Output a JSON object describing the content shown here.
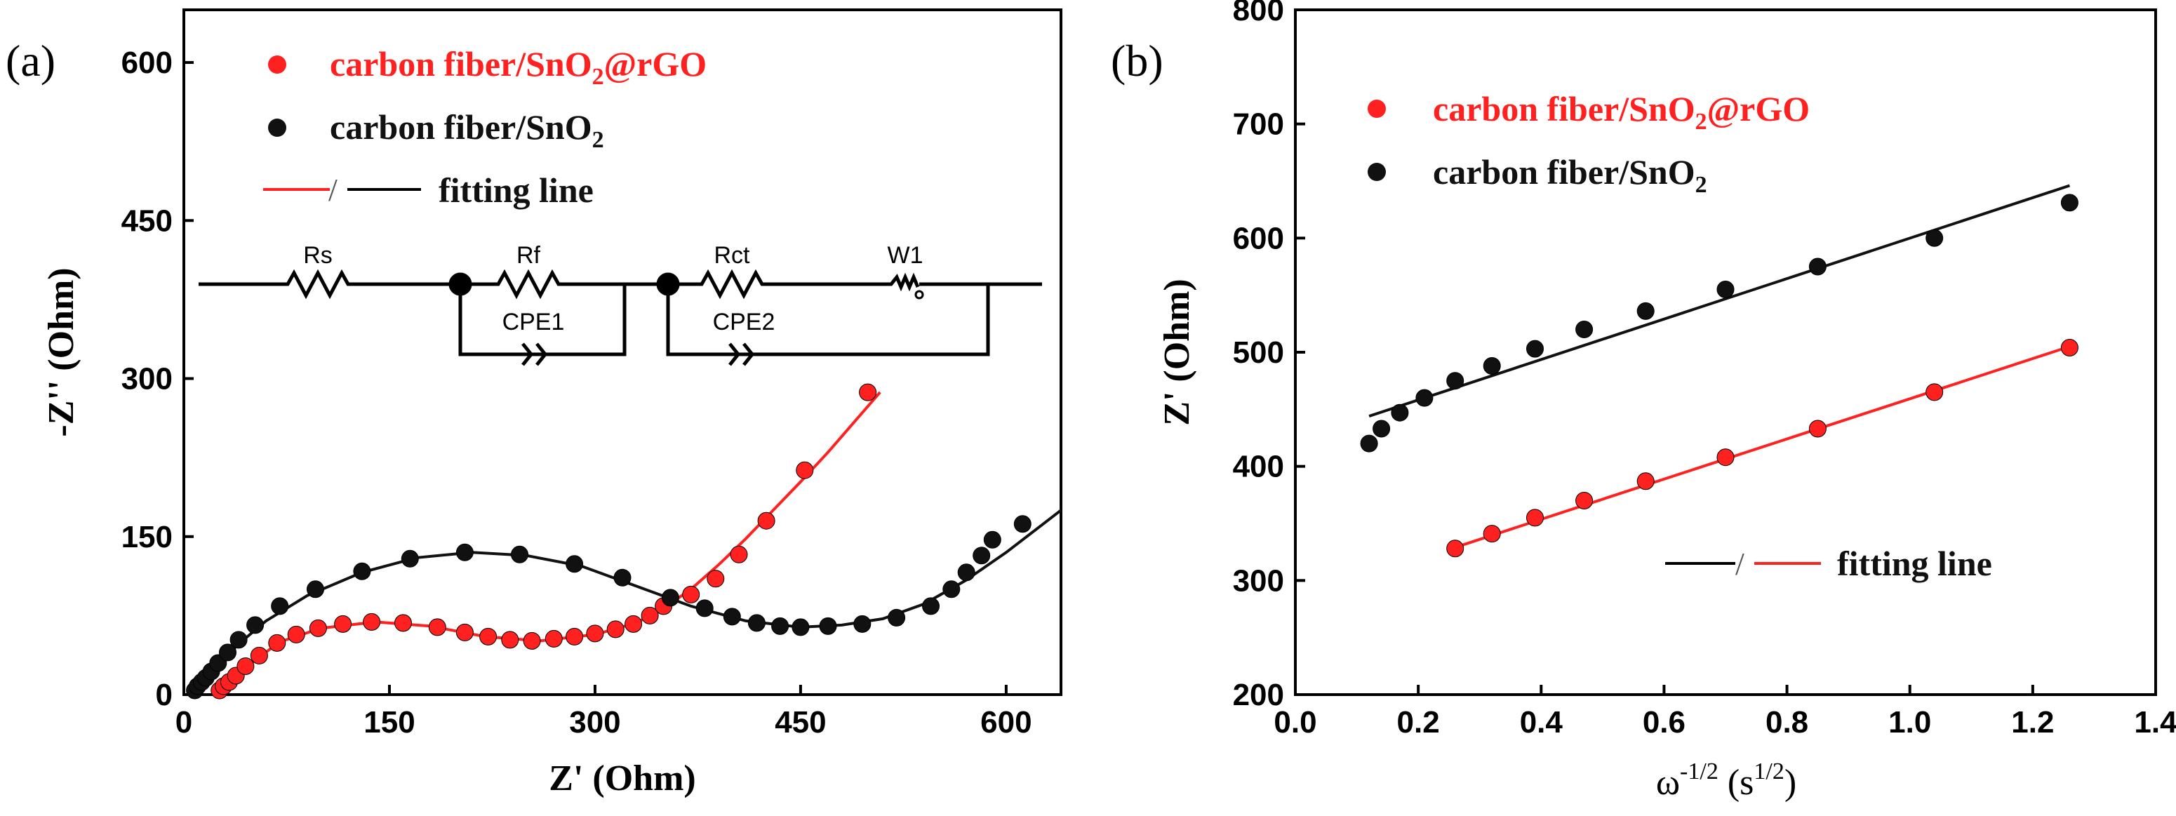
{
  "figure": {
    "colors": {
      "red": "#ff2020",
      "black": "#111111",
      "axis": "#000000"
    }
  },
  "chart_data": [
    {
      "panel_label": "(a)",
      "type": "scatter",
      "title": "",
      "xlabel": "Z' (Ohm)",
      "ylabel": "-Z'' (Ohm)",
      "xlim": [
        0,
        640
      ],
      "ylim": [
        0,
        650
      ],
      "xticks": [
        0,
        150,
        300,
        450,
        600
      ],
      "yticks": [
        0,
        150,
        300,
        450,
        600
      ],
      "legend": {
        "series1": {
          "pre": "carbon fiber/SnO",
          "sub": "2",
          "post": "@rGO"
        },
        "series2": {
          "pre": "carbon fiber/SnO",
          "sub": "2",
          "post": ""
        },
        "fit": {
          "sep": "/",
          "label": "fitting line"
        }
      },
      "circuit": {
        "labels": [
          "Rs",
          "Rf",
          "Rct",
          "W1",
          "CPE1",
          "CPE2"
        ]
      },
      "series": [
        {
          "name": "carbon fiber/SnO2@rGO",
          "color": "#ff2020",
          "points": [
            [
              26,
              4
            ],
            [
              29,
              8
            ],
            [
              33,
              12
            ],
            [
              38,
              18
            ],
            [
              45,
              27
            ],
            [
              55,
              37
            ],
            [
              68,
              49
            ],
            [
              82,
              57
            ],
            [
              98,
              63
            ],
            [
              116,
              67
            ],
            [
              137,
              69
            ],
            [
              160,
              68
            ],
            [
              185,
              64
            ],
            [
              205,
              59
            ],
            [
              222,
              55
            ],
            [
              238,
              52
            ],
            [
              254,
              51
            ],
            [
              270,
              53
            ],
            [
              285,
              55
            ],
            [
              300,
              58
            ],
            [
              315,
              62
            ],
            [
              328,
              67
            ],
            [
              340,
              75
            ],
            [
              350,
              84
            ],
            [
              370,
              95
            ],
            [
              388,
              110
            ],
            [
              405,
              133
            ],
            [
              425,
              165
            ],
            [
              453,
              213
            ],
            [
              499,
              287
            ]
          ],
          "fit": [
            [
              26,
              4
            ],
            [
              45,
              26
            ],
            [
              70,
              50
            ],
            [
              100,
              63
            ],
            [
              140,
              69
            ],
            [
              180,
              65
            ],
            [
              220,
              55
            ],
            [
              260,
              51
            ],
            [
              300,
              57
            ],
            [
              330,
              68
            ],
            [
              350,
              82
            ],
            [
              370,
              100
            ],
            [
              390,
              123
            ],
            [
              410,
              148
            ],
            [
              430,
              175
            ],
            [
              450,
              202
            ],
            [
              470,
              230
            ],
            [
              490,
              260
            ],
            [
              508,
              287
            ]
          ]
        },
        {
          "name": "carbon fiber/SnO2",
          "color": "#111111",
          "points": [
            [
              8,
              4
            ],
            [
              10,
              8
            ],
            [
              13,
              12
            ],
            [
              16,
              16
            ],
            [
              20,
              22
            ],
            [
              25,
              30
            ],
            [
              32,
              40
            ],
            [
              40,
              52
            ],
            [
              52,
              66
            ],
            [
              70,
              84
            ],
            [
              96,
              100
            ],
            [
              130,
              117
            ],
            [
              165,
              129
            ],
            [
              205,
              135
            ],
            [
              245,
              133
            ],
            [
              285,
              124
            ],
            [
              320,
              111
            ],
            [
              355,
              92
            ],
            [
              380,
              82
            ],
            [
              400,
              74
            ],
            [
              418,
              68
            ],
            [
              435,
              65
            ],
            [
              450,
              64
            ],
            [
              470,
              65
            ],
            [
              495,
              67
            ],
            [
              520,
              73
            ],
            [
              545,
              84
            ],
            [
              560,
              100
            ],
            [
              571,
              116
            ],
            [
              582,
              132
            ],
            [
              590,
              147
            ],
            [
              612,
              162
            ]
          ],
          "fit": [
            [
              8,
              4
            ],
            [
              15,
              15
            ],
            [
              25,
              28
            ],
            [
              40,
              48
            ],
            [
              60,
              70
            ],
            [
              90,
              94
            ],
            [
              130,
              116
            ],
            [
              170,
              130
            ],
            [
              210,
              135
            ],
            [
              250,
              132
            ],
            [
              290,
              122
            ],
            [
              330,
              103
            ],
            [
              370,
              84
            ],
            [
              410,
              70
            ],
            [
              450,
              64
            ],
            [
              480,
              66
            ],
            [
              510,
              72
            ],
            [
              540,
              86
            ],
            [
              570,
              108
            ],
            [
              600,
              135
            ],
            [
              625,
              160
            ],
            [
              640,
              175
            ]
          ]
        }
      ]
    },
    {
      "panel_label": "(b)",
      "type": "scatter",
      "title": "",
      "xlabel": {
        "pre": "ω",
        "sup": "-1/2",
        "mid": " (s",
        "sup2": "1/2",
        "post": ")"
      },
      "ylabel": "Z' (Ohm)",
      "xlim": [
        0.0,
        1.4
      ],
      "ylim": [
        200,
        800
      ],
      "xticks": [
        0.0,
        0.2,
        0.4,
        0.6,
        0.8,
        1.0,
        1.2,
        1.4
      ],
      "yticks": [
        200,
        300,
        400,
        500,
        600,
        700,
        800
      ],
      "xtick_labels": [
        "0.0",
        "0.2",
        "0.4",
        "0.6",
        "0.8",
        "1.0",
        "1.2",
        "1.4"
      ],
      "legend": {
        "series1": {
          "pre": "carbon fiber/SnO",
          "sub": "2",
          "post": "@rGO"
        },
        "series2": {
          "pre": "carbon fiber/SnO",
          "sub": "2",
          "post": ""
        },
        "fit": {
          "sep": "/",
          "label": "fitting line"
        }
      },
      "series": [
        {
          "name": "carbon fiber/SnO2@rGO",
          "color": "#ff2020",
          "points": [
            [
              0.26,
              328
            ],
            [
              0.32,
              341
            ],
            [
              0.39,
              355
            ],
            [
              0.47,
              370
            ],
            [
              0.57,
              387
            ],
            [
              0.7,
              408
            ],
            [
              0.85,
              433
            ],
            [
              1.04,
              465
            ],
            [
              1.26,
              504
            ]
          ],
          "fit": [
            [
              0.26,
              329
            ],
            [
              1.26,
              505
            ]
          ]
        },
        {
          "name": "carbon fiber/SnO2",
          "color": "#111111",
          "points": [
            [
              0.12,
              420
            ],
            [
              0.14,
              433
            ],
            [
              0.17,
              447
            ],
            [
              0.21,
              460
            ],
            [
              0.26,
              475
            ],
            [
              0.32,
              488
            ],
            [
              0.39,
              503
            ],
            [
              0.47,
              520
            ],
            [
              0.57,
              536
            ],
            [
              0.7,
              555
            ],
            [
              0.85,
              575
            ],
            [
              1.04,
              600
            ],
            [
              1.26,
              631
            ]
          ],
          "fit": [
            [
              0.12,
              444
            ],
            [
              1.26,
              646
            ]
          ]
        }
      ]
    }
  ]
}
